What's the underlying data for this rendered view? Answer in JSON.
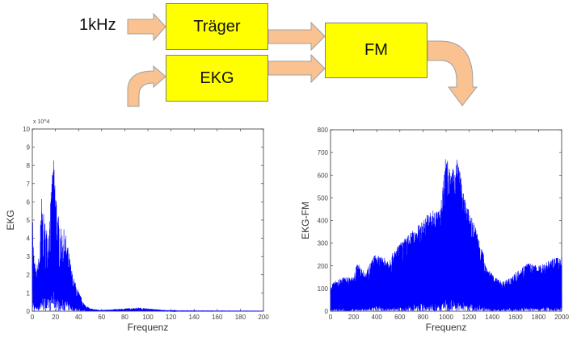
{
  "diagram": {
    "input_label": "1kHz",
    "carrier_label": "Träger",
    "ecg_label": "EKG",
    "fm_label": "FM",
    "box_color": "#ffff00",
    "arrow_color": "#fac191"
  },
  "chart_data": [
    {
      "type": "line",
      "xlabel": "Frequenz",
      "ylabel": "EKG",
      "y_multiplier": "x 10^4",
      "xlim": [
        0,
        200
      ],
      "ylim": [
        0,
        10
      ],
      "xticks": [
        0,
        20,
        40,
        60,
        80,
        100,
        120,
        140,
        160,
        180,
        200
      ],
      "yticks": [
        0,
        1,
        2,
        3,
        4,
        5,
        6,
        7,
        8,
        9,
        10
      ],
      "grid": false,
      "color": "#0000ff",
      "envelope": [
        [
          0,
          7.1
        ],
        [
          1,
          3.5
        ],
        [
          3,
          2.2
        ],
        [
          6,
          3.2
        ],
        [
          8,
          6.3
        ],
        [
          10,
          5.2
        ],
        [
          13,
          4.5
        ],
        [
          16,
          6.3
        ],
        [
          18,
          8.6
        ],
        [
          20,
          7.3
        ],
        [
          22,
          5.5
        ],
        [
          25,
          4.5
        ],
        [
          28,
          4.5
        ],
        [
          31,
          3.5
        ],
        [
          35,
          2
        ],
        [
          40,
          1.1
        ],
        [
          45,
          0.4
        ],
        [
          50,
          0.15
        ],
        [
          60,
          0.06
        ],
        [
          80,
          0.15
        ],
        [
          92,
          0.2
        ],
        [
          105,
          0.12
        ],
        [
          115,
          0.06
        ],
        [
          125,
          0.02
        ],
        [
          200,
          0.01
        ]
      ]
    },
    {
      "type": "line",
      "xlabel": "Frequenz",
      "ylabel": "EKG-FM",
      "xlim": [
        0,
        2000
      ],
      "ylim": [
        0,
        800
      ],
      "xticks": [
        0,
        200,
        400,
        600,
        800,
        1000,
        1200,
        1400,
        1600,
        1800,
        2000
      ],
      "yticks": [
        0,
        100,
        200,
        300,
        400,
        500,
        600,
        700,
        800
      ],
      "grid": false,
      "color": "#0000ff",
      "envelope": [
        [
          0,
          120
        ],
        [
          100,
          150
        ],
        [
          200,
          150
        ],
        [
          230,
          215
        ],
        [
          300,
          170
        ],
        [
          380,
          250
        ],
        [
          500,
          230
        ],
        [
          600,
          300
        ],
        [
          700,
          350
        ],
        [
          800,
          400
        ],
        [
          850,
          440
        ],
        [
          950,
          450
        ],
        [
          1000,
          710
        ],
        [
          1040,
          600
        ],
        [
          1100,
          685
        ],
        [
          1150,
          520
        ],
        [
          1200,
          440
        ],
        [
          1250,
          380
        ],
        [
          1300,
          300
        ],
        [
          1350,
          200
        ],
        [
          1420,
          150
        ],
        [
          1500,
          130
        ],
        [
          1600,
          170
        ],
        [
          1700,
          215
        ],
        [
          1800,
          200
        ],
        [
          1900,
          230
        ],
        [
          2000,
          240
        ]
      ]
    }
  ]
}
